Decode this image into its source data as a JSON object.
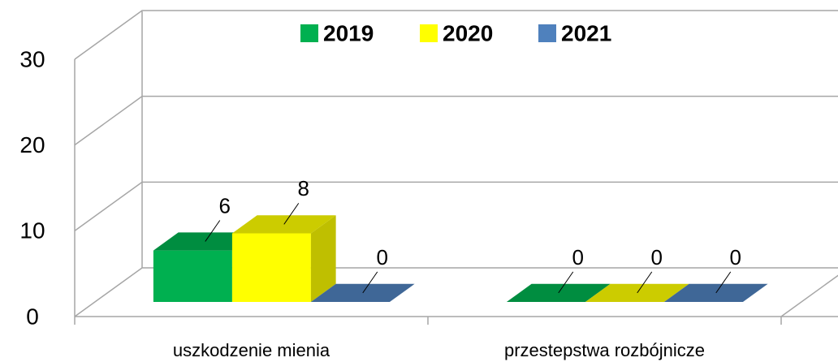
{
  "chart_data": {
    "type": "bar3d",
    "categories": [
      "uszkodzenie mienia",
      "przestepstwa rozbójnicze"
    ],
    "series": [
      {
        "name": "2019",
        "color": "#00b050",
        "values": [
          6,
          0
        ]
      },
      {
        "name": "2020",
        "color": "#ffff00",
        "values": [
          8,
          0
        ]
      },
      {
        "name": "2021",
        "color": "#4f81bd",
        "values": [
          0,
          0
        ]
      }
    ],
    "ylim": [
      0,
      30
    ],
    "yticks": [
      0,
      10,
      20,
      30
    ],
    "grid": true,
    "legend": "top"
  }
}
